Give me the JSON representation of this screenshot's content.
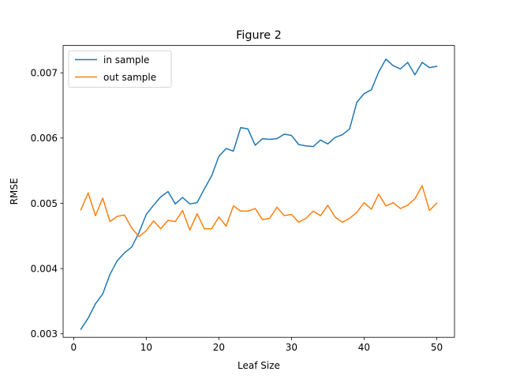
{
  "chart_data": {
    "type": "line",
    "title": "Figure 2",
    "xlabel": "Leaf Size",
    "ylabel": "RMSE",
    "xlim": [
      -1.45,
      52.45
    ],
    "ylim": [
      0.002946,
      0.007419
    ],
    "xticks": [
      0,
      10,
      20,
      30,
      40,
      50
    ],
    "yticks": [
      0.003,
      0.004,
      0.005,
      0.006,
      0.007
    ],
    "ytick_labels": [
      "0.003",
      "0.004",
      "0.005",
      "0.006",
      "0.007"
    ],
    "grid": false,
    "legend": "top-left",
    "x": [
      1,
      2,
      3,
      4,
      5,
      6,
      7,
      8,
      9,
      10,
      11,
      12,
      13,
      14,
      15,
      16,
      17,
      18,
      19,
      20,
      21,
      22,
      23,
      24,
      25,
      26,
      27,
      28,
      29,
      30,
      31,
      32,
      33,
      34,
      35,
      36,
      37,
      38,
      39,
      40,
      41,
      42,
      43,
      44,
      45,
      46,
      47,
      48,
      49,
      50
    ],
    "series": [
      {
        "name": "in sample",
        "color": "#1f77b4",
        "values": [
          0.00307,
          0.00324,
          0.00346,
          0.00361,
          0.00391,
          0.00412,
          0.00424,
          0.00433,
          0.00455,
          0.00483,
          0.00497,
          0.0051,
          0.00518,
          0.00499,
          0.00509,
          0.00499,
          0.00501,
          0.00522,
          0.00542,
          0.00572,
          0.00584,
          0.0058,
          0.00616,
          0.00614,
          0.00589,
          0.00599,
          0.00598,
          0.00599,
          0.00606,
          0.00604,
          0.0059,
          0.00588,
          0.00587,
          0.00597,
          0.00591,
          0.00601,
          0.00605,
          0.00614,
          0.00655,
          0.00668,
          0.00674,
          0.00701,
          0.00721,
          0.00711,
          0.00706,
          0.00716,
          0.00697,
          0.00716,
          0.00708,
          0.0071
        ]
      },
      {
        "name": "out sample",
        "color": "#ff7f0e",
        "values": [
          0.0049,
          0.00516,
          0.00481,
          0.00508,
          0.00472,
          0.0048,
          0.00482,
          0.00462,
          0.00449,
          0.00458,
          0.00473,
          0.00461,
          0.00474,
          0.00472,
          0.00489,
          0.00459,
          0.00484,
          0.00461,
          0.00461,
          0.00479,
          0.00465,
          0.00496,
          0.00488,
          0.00488,
          0.00492,
          0.00475,
          0.00477,
          0.00494,
          0.00481,
          0.00483,
          0.00471,
          0.00477,
          0.00488,
          0.00481,
          0.00497,
          0.00479,
          0.00471,
          0.00477,
          0.00486,
          0.00501,
          0.00491,
          0.00514,
          0.00496,
          0.00501,
          0.00492,
          0.00497,
          0.00507,
          0.00527,
          0.00489,
          0.005
        ]
      }
    ]
  }
}
